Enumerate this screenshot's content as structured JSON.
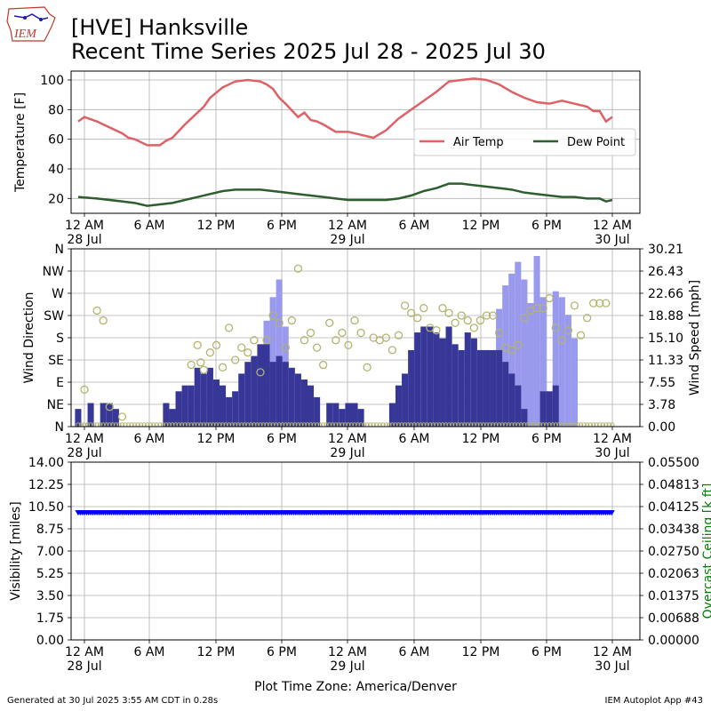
{
  "header": {
    "title_line1": "[HVE] Hanksville",
    "title_line2": "Recent Time Series 2025 Jul 28 - 2025 Jul 30",
    "logo_text": "IEM"
  },
  "footer": {
    "generated": "Generated at 30 Jul 2025 3:55 AM CDT in 0.28s",
    "app": "IEM Autoplot App #43"
  },
  "colors": {
    "air_temp": "#dd6166",
    "dew_point": "#2e5e2e",
    "wind_gust": "#9999ee",
    "wind_speed": "#373797",
    "wind_dir_marker": "#b4b46e",
    "visibility": "#0000ff",
    "ceiling_axis": "#008000",
    "grid": "#b0b0b0"
  },
  "chart_data": [
    {
      "type": "line",
      "ylabel": "Temperature [F]",
      "ylim": [
        10,
        106
      ],
      "yticks": [
        20,
        40,
        60,
        80,
        100
      ],
      "xlim": [
        -1,
        84
      ],
      "x_unit": "hours since 2025-07-28 00:00 (America/Denver)",
      "grid": true,
      "legend_placement": "center-right",
      "series": [
        {
          "name": "Air Temp",
          "x": [
            -1,
            0,
            2,
            4,
            6,
            7,
            8,
            10,
            12,
            13,
            14,
            16,
            18,
            19,
            20,
            22,
            24,
            26,
            28,
            29,
            30,
            31,
            32,
            34,
            35,
            36,
            37,
            38,
            40,
            42,
            44,
            46,
            48,
            50,
            52,
            54,
            56,
            58,
            60,
            62,
            64,
            66,
            68,
            70,
            72,
            74,
            76,
            78,
            80,
            81,
            82,
            83,
            84
          ],
          "y": [
            72,
            75,
            72,
            68,
            64,
            61,
            60,
            56,
            56,
            59,
            61,
            70,
            78,
            82,
            88,
            95,
            99,
            100,
            99,
            97,
            94,
            88,
            84,
            75,
            78,
            73,
            72,
            70,
            65,
            65,
            63,
            61,
            66,
            74,
            80,
            86,
            92,
            99,
            100,
            101,
            100,
            97,
            92,
            88,
            85,
            84,
            86,
            84,
            82,
            79,
            79,
            72,
            75
          ]
        },
        {
          "name": "Dew Point",
          "x": [
            -1,
            2,
            4,
            6,
            8,
            9,
            10,
            12,
            14,
            16,
            18,
            20,
            22,
            24,
            26,
            28,
            30,
            32,
            34,
            36,
            38,
            40,
            42,
            44,
            46,
            48,
            50,
            52,
            54,
            56,
            58,
            60,
            62,
            64,
            66,
            68,
            70,
            72,
            74,
            76,
            78,
            80,
            82,
            83,
            84
          ],
          "y": [
            21,
            20,
            19,
            18,
            17,
            16,
            15,
            16,
            17,
            19,
            21,
            23,
            25,
            26,
            26,
            26,
            25,
            24,
            23,
            22,
            21,
            20,
            19,
            19,
            19,
            19,
            20,
            22,
            25,
            27,
            30,
            30,
            29,
            28,
            27,
            26,
            24,
            23,
            22,
            21,
            21,
            20,
            20,
            18,
            19
          ]
        }
      ],
      "xtick_labels": [
        "12 AM",
        "6 AM",
        "12 PM",
        "6 PM",
        "12 AM",
        "6 AM",
        "12 PM",
        "6 PM",
        "12 AM"
      ],
      "xtick_sublabels": [
        "28 Jul",
        "",
        "",
        "",
        "29 Jul",
        "",
        "",
        "",
        "30 Jul"
      ]
    },
    {
      "type": "bar",
      "ylabel": "Wind Direction",
      "y2label": "Wind Speed [mph]",
      "grid": true,
      "direction_ticks": [
        "N",
        "NE",
        "E",
        "SE",
        "S",
        "SW",
        "W",
        "NW",
        "N"
      ],
      "direction_values": [
        0,
        45,
        90,
        135,
        180,
        225,
        270,
        315,
        360
      ],
      "speed_ticks": [
        "0.00",
        "3.78",
        "7.55",
        "11.33",
        "15.10",
        "18.88",
        "22.66",
        "26.43",
        "30.21"
      ],
      "speed_ylim": [
        0,
        30.21
      ],
      "xlim": [
        -1,
        84
      ],
      "hours": [
        -1,
        0,
        1,
        2,
        3,
        4,
        5,
        6,
        7,
        8,
        9,
        10,
        11,
        12,
        13,
        14,
        15,
        16,
        17,
        18,
        19,
        20,
        21,
        22,
        23,
        24,
        25,
        26,
        27,
        28,
        29,
        30,
        31,
        32,
        33,
        34,
        35,
        36,
        37,
        38,
        39,
        40,
        41,
        42,
        43,
        44,
        45,
        46,
        47,
        48,
        49,
        50,
        51,
        52,
        53,
        54,
        55,
        56,
        57,
        58,
        59,
        60,
        61,
        62,
        63,
        64,
        65,
        66,
        67,
        68,
        69,
        70,
        71,
        72,
        73,
        74,
        75,
        76,
        77,
        78,
        79,
        80,
        81,
        82,
        83
      ],
      "series": [
        {
          "name": "Gust",
          "values": [
            0,
            0,
            0,
            0,
            0,
            0,
            0,
            0,
            0,
            0,
            0,
            0,
            0,
            0,
            0,
            0,
            0,
            0,
            0,
            0,
            0,
            0,
            0,
            0,
            0,
            0,
            0,
            0,
            0,
            0,
            18,
            22,
            25,
            17,
            0,
            0,
            0,
            0,
            0,
            0,
            0,
            0,
            0,
            0,
            0,
            0,
            0,
            0,
            0,
            0,
            0,
            0,
            0,
            0,
            0,
            0,
            0,
            0,
            0,
            0,
            0,
            0,
            0,
            0,
            0,
            0,
            0,
            20,
            24,
            26,
            28,
            25,
            21,
            29,
            22,
            0,
            23,
            22,
            19,
            15,
            0,
            0,
            0,
            0,
            0
          ]
        },
        {
          "name": "Speed",
          "values": [
            3,
            0,
            4,
            0,
            4,
            4,
            3,
            0,
            0,
            0,
            0,
            0,
            0,
            0,
            4,
            3,
            6,
            7,
            7,
            10,
            9,
            10,
            8,
            7,
            5,
            6,
            9,
            11,
            12,
            14,
            14,
            11,
            12,
            11,
            10,
            9,
            8,
            7,
            5,
            0,
            4,
            4,
            3,
            4,
            4,
            3,
            0,
            0,
            0,
            0,
            4,
            7,
            9,
            13,
            16,
            17,
            17,
            16,
            15,
            17,
            14,
            13,
            16,
            15,
            13,
            13,
            13,
            13,
            11,
            9,
            7,
            3,
            0,
            0,
            6,
            6,
            7,
            0,
            0,
            0,
            0,
            0,
            0,
            0,
            0
          ]
        },
        {
          "name": "Direction",
          "x": [
            0,
            2,
            3,
            4,
            6,
            17,
            18,
            18.5,
            19,
            20,
            21,
            22,
            23,
            24,
            25,
            26,
            27,
            28,
            29,
            30,
            31,
            32,
            33,
            34,
            35,
            36,
            37,
            38,
            39,
            40,
            41,
            42,
            43,
            44,
            45,
            46,
            47,
            48,
            49,
            50,
            51,
            52,
            53,
            54,
            55,
            56,
            57,
            58,
            59,
            60,
            61,
            62,
            63,
            64,
            65,
            66,
            67,
            68,
            69,
            70,
            71,
            72,
            73,
            74,
            75,
            76,
            77,
            78,
            79,
            80,
            81,
            82,
            83
          ],
          "y": [
            75,
            235,
            215,
            40,
            20,
            125,
            165,
            130,
            115,
            150,
            165,
            120,
            200,
            135,
            160,
            150,
            175,
            110,
            175,
            225,
            210,
            160,
            215,
            320,
            175,
            190,
            160,
            125,
            210,
            175,
            190,
            165,
            215,
            190,
            120,
            180,
            175,
            180,
            155,
            185,
            245,
            230,
            220,
            240,
            200,
            195,
            240,
            230,
            210,
            225,
            215,
            200,
            215,
            225,
            225,
            190,
            160,
            155,
            165,
            220,
            235,
            240,
            240,
            260,
            200,
            175,
            195,
            245,
            185,
            220,
            250,
            250,
            250
          ]
        }
      ],
      "xtick_labels": [
        "12 AM",
        "6 AM",
        "12 PM",
        "6 PM",
        "12 AM",
        "6 AM",
        "12 PM",
        "6 PM",
        "12 AM"
      ],
      "xtick_sublabels": [
        "28 Jul",
        "",
        "",
        "",
        "29 Jul",
        "",
        "",
        "",
        "30 Jul"
      ]
    },
    {
      "type": "scatter",
      "ylabel": "Visibility [miles]",
      "y2label": "Overcast Ceiling [k ft]",
      "xlabel": "Plot Time Zone: America/Denver",
      "ylim": [
        0,
        14
      ],
      "yticks": [
        "0.00",
        "1.75",
        "3.50",
        "5.25",
        "7.00",
        "8.75",
        "10.50",
        "12.25",
        "14.00"
      ],
      "y2lim": [
        0,
        0.055
      ],
      "y2ticks": [
        "0.00000",
        "0.00688",
        "0.01375",
        "0.02063",
        "0.02750",
        "0.03438",
        "0.04125",
        "0.04813",
        "0.05500"
      ],
      "xlim": [
        -1,
        84
      ],
      "grid": true,
      "series": [
        {
          "name": "Visibility",
          "value_constant": 10.0,
          "x_start": -1,
          "x_end": 84,
          "x_step": 0.333
        }
      ],
      "xtick_labels": [
        "12 AM",
        "6 AM",
        "12 PM",
        "6 PM",
        "12 AM",
        "6 AM",
        "12 PM",
        "6 PM",
        "12 AM"
      ],
      "xtick_sublabels": [
        "28 Jul",
        "",
        "",
        "",
        "29 Jul",
        "",
        "",
        "",
        "30 Jul"
      ]
    }
  ]
}
